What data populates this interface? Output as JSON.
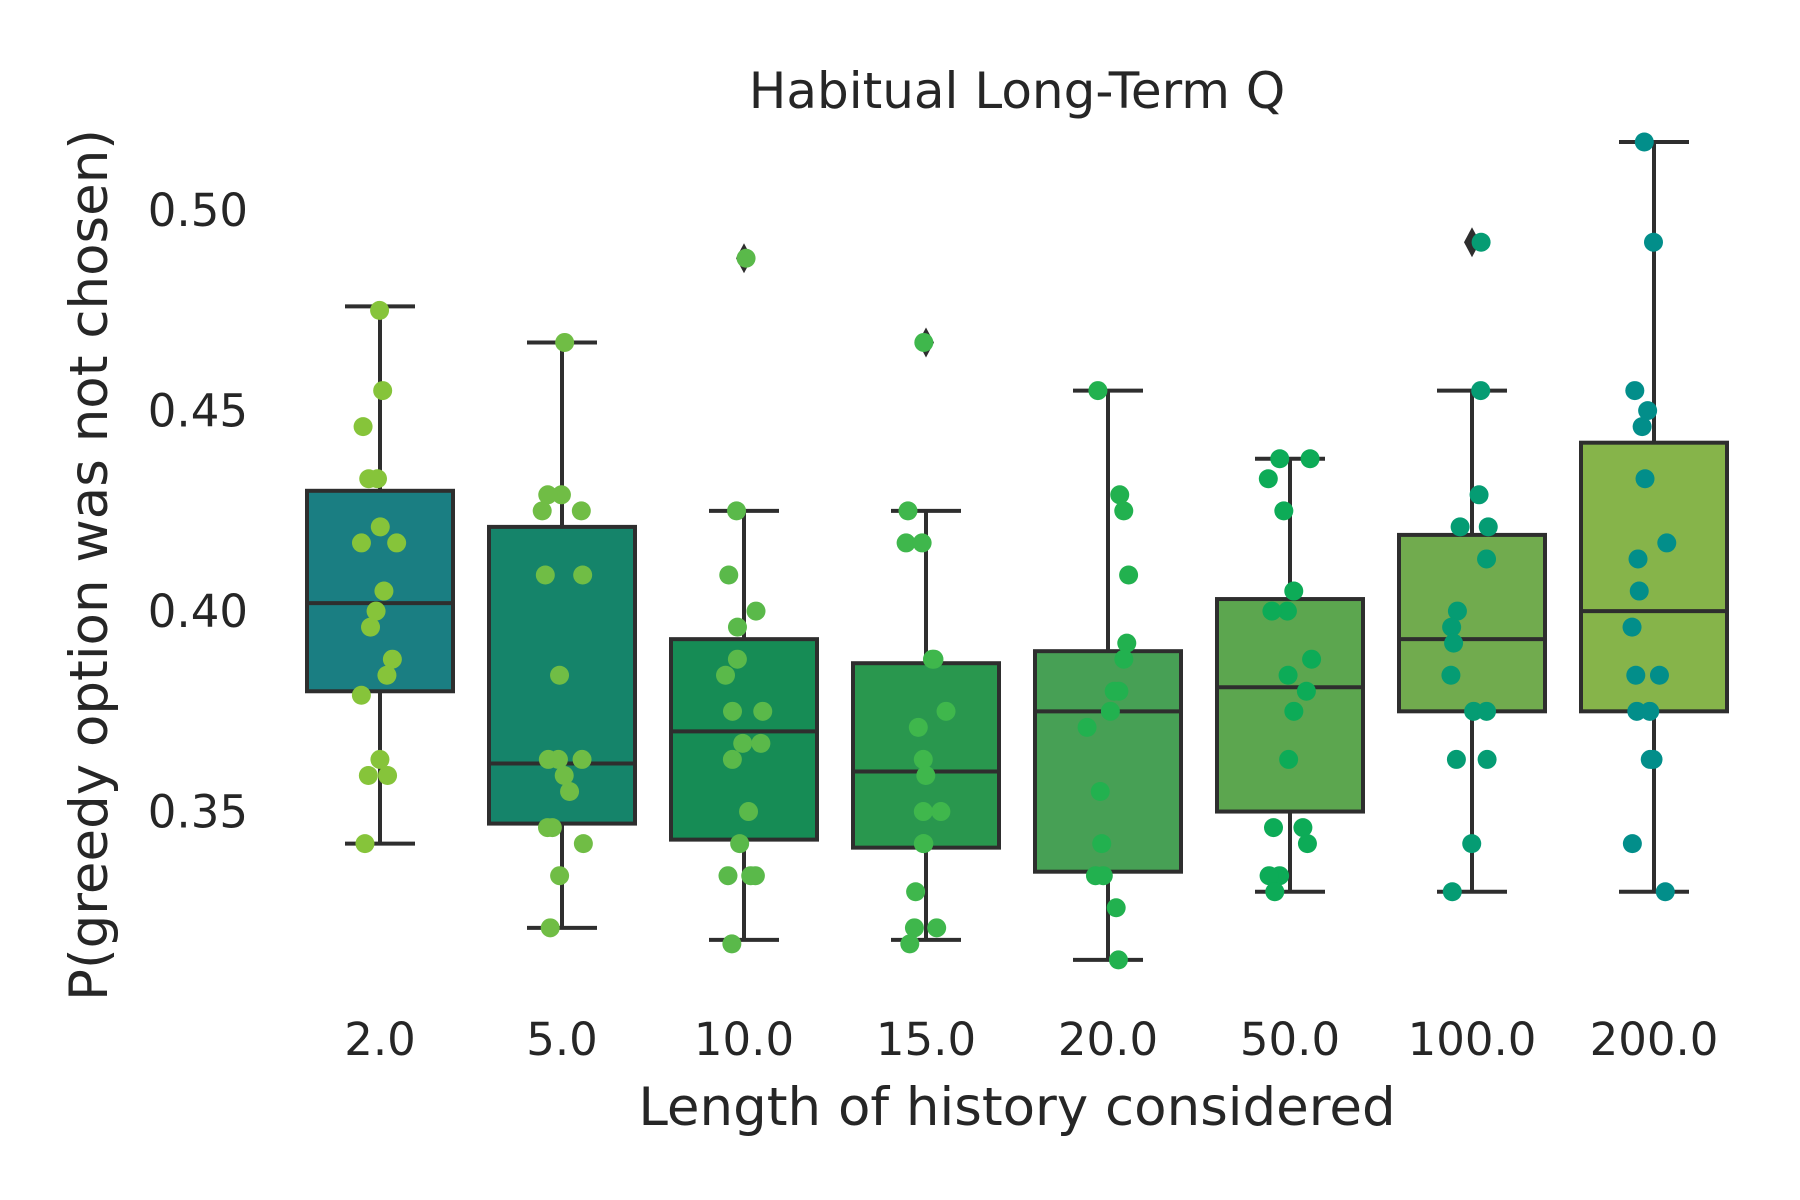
{
  "chart_data": {
    "type": "box",
    "title": "Habitual Long-Term Q",
    "xlabel": "Length of history considered",
    "ylabel": "P(greedy option was not chosen)",
    "ylim": [
      0.303,
      0.515
    ],
    "yticks": [
      "0.35",
      "0.40",
      "0.45",
      "0.50"
    ],
    "categories": [
      "2.0",
      "5.0",
      "10.0",
      "15.0",
      "20.0",
      "50.0",
      "100.0",
      "200.0"
    ],
    "grid": false,
    "boxes": [
      {
        "category": "2.0",
        "whisker_low": 0.342,
        "q1": 0.38,
        "median": 0.402,
        "q3": 0.43,
        "whisker_high": 0.476,
        "fliers": [],
        "color": "#1a7e82"
      },
      {
        "category": "5.0",
        "whisker_low": 0.321,
        "q1": 0.347,
        "median": 0.362,
        "q3": 0.421,
        "whisker_high": 0.467,
        "fliers": [],
        "color": "#15846a"
      },
      {
        "category": "10.0",
        "whisker_low": 0.318,
        "q1": 0.343,
        "median": 0.37,
        "q3": 0.393,
        "whisker_high": 0.425,
        "fliers": [
          0.488
        ],
        "color": "#168c55"
      },
      {
        "category": "15.0",
        "whisker_low": 0.318,
        "q1": 0.341,
        "median": 0.36,
        "q3": 0.387,
        "whisker_high": 0.425,
        "fliers": [
          0.467
        ],
        "color": "#29974e"
      },
      {
        "category": "20.0",
        "whisker_low": 0.313,
        "q1": 0.335,
        "median": 0.375,
        "q3": 0.39,
        "whisker_high": 0.455,
        "fliers": [],
        "color": "#47a055"
      },
      {
        "category": "50.0",
        "whisker_low": 0.33,
        "q1": 0.35,
        "median": 0.381,
        "q3": 0.403,
        "whisker_high": 0.438,
        "fliers": [],
        "color": "#5ca64f"
      },
      {
        "category": "100.0",
        "whisker_low": 0.33,
        "q1": 0.375,
        "median": 0.393,
        "q3": 0.419,
        "whisker_high": 0.455,
        "fliers": [
          0.492
        ],
        "color": "#71ab4e"
      },
      {
        "category": "200.0",
        "whisker_low": 0.33,
        "q1": 0.375,
        "median": 0.4,
        "q3": 0.442,
        "whisker_high": 0.517,
        "fliers": [],
        "color": "#86b44a"
      }
    ],
    "points": [
      {
        "category": "2.0",
        "color": "#86c43a",
        "values": [
          0.475,
          0.455,
          0.446,
          0.433,
          0.433,
          0.421,
          0.417,
          0.417,
          0.405,
          0.4,
          0.396,
          0.388,
          0.384,
          0.379,
          0.363,
          0.359,
          0.359,
          0.342
        ]
      },
      {
        "category": "5.0",
        "color": "#70bd45",
        "values": [
          0.467,
          0.429,
          0.429,
          0.425,
          0.425,
          0.409,
          0.409,
          0.384,
          0.363,
          0.363,
          0.363,
          0.359,
          0.355,
          0.346,
          0.346,
          0.342,
          0.334,
          0.321
        ]
      },
      {
        "category": "10.0",
        "color": "#5ab94a",
        "values": [
          0.488,
          0.425,
          0.409,
          0.4,
          0.396,
          0.388,
          0.384,
          0.375,
          0.375,
          0.367,
          0.367,
          0.363,
          0.35,
          0.342,
          0.334,
          0.334,
          0.334,
          0.317
        ]
      },
      {
        "category": "15.0",
        "color": "#3fb74c",
        "values": [
          0.467,
          0.425,
          0.417,
          0.417,
          0.388,
          0.388,
          0.375,
          0.371,
          0.363,
          0.359,
          0.35,
          0.35,
          0.342,
          0.342,
          0.33,
          0.321,
          0.321,
          0.317
        ]
      },
      {
        "category": "20.0",
        "color": "#22b14f",
        "values": [
          0.455,
          0.429,
          0.425,
          0.409,
          0.392,
          0.388,
          0.38,
          0.38,
          0.375,
          0.371,
          0.355,
          0.342,
          0.334,
          0.334,
          0.326,
          0.313
        ]
      },
      {
        "category": "50.0",
        "color": "#0dab57",
        "values": [
          0.438,
          0.438,
          0.433,
          0.425,
          0.405,
          0.4,
          0.4,
          0.388,
          0.384,
          0.38,
          0.375,
          0.363,
          0.346,
          0.346,
          0.342,
          0.334,
          0.334,
          0.33
        ]
      },
      {
        "category": "100.0",
        "color": "#059c73",
        "values": [
          0.492,
          0.455,
          0.429,
          0.421,
          0.421,
          0.413,
          0.4,
          0.396,
          0.392,
          0.384,
          0.375,
          0.375,
          0.363,
          0.363,
          0.342,
          0.33
        ]
      },
      {
        "category": "200.0",
        "color": "#028e8a",
        "values": [
          0.517,
          0.492,
          0.455,
          0.45,
          0.446,
          0.433,
          0.417,
          0.413,
          0.405,
          0.396,
          0.384,
          0.384,
          0.375,
          0.375,
          0.363,
          0.363,
          0.342,
          0.33
        ]
      }
    ]
  }
}
